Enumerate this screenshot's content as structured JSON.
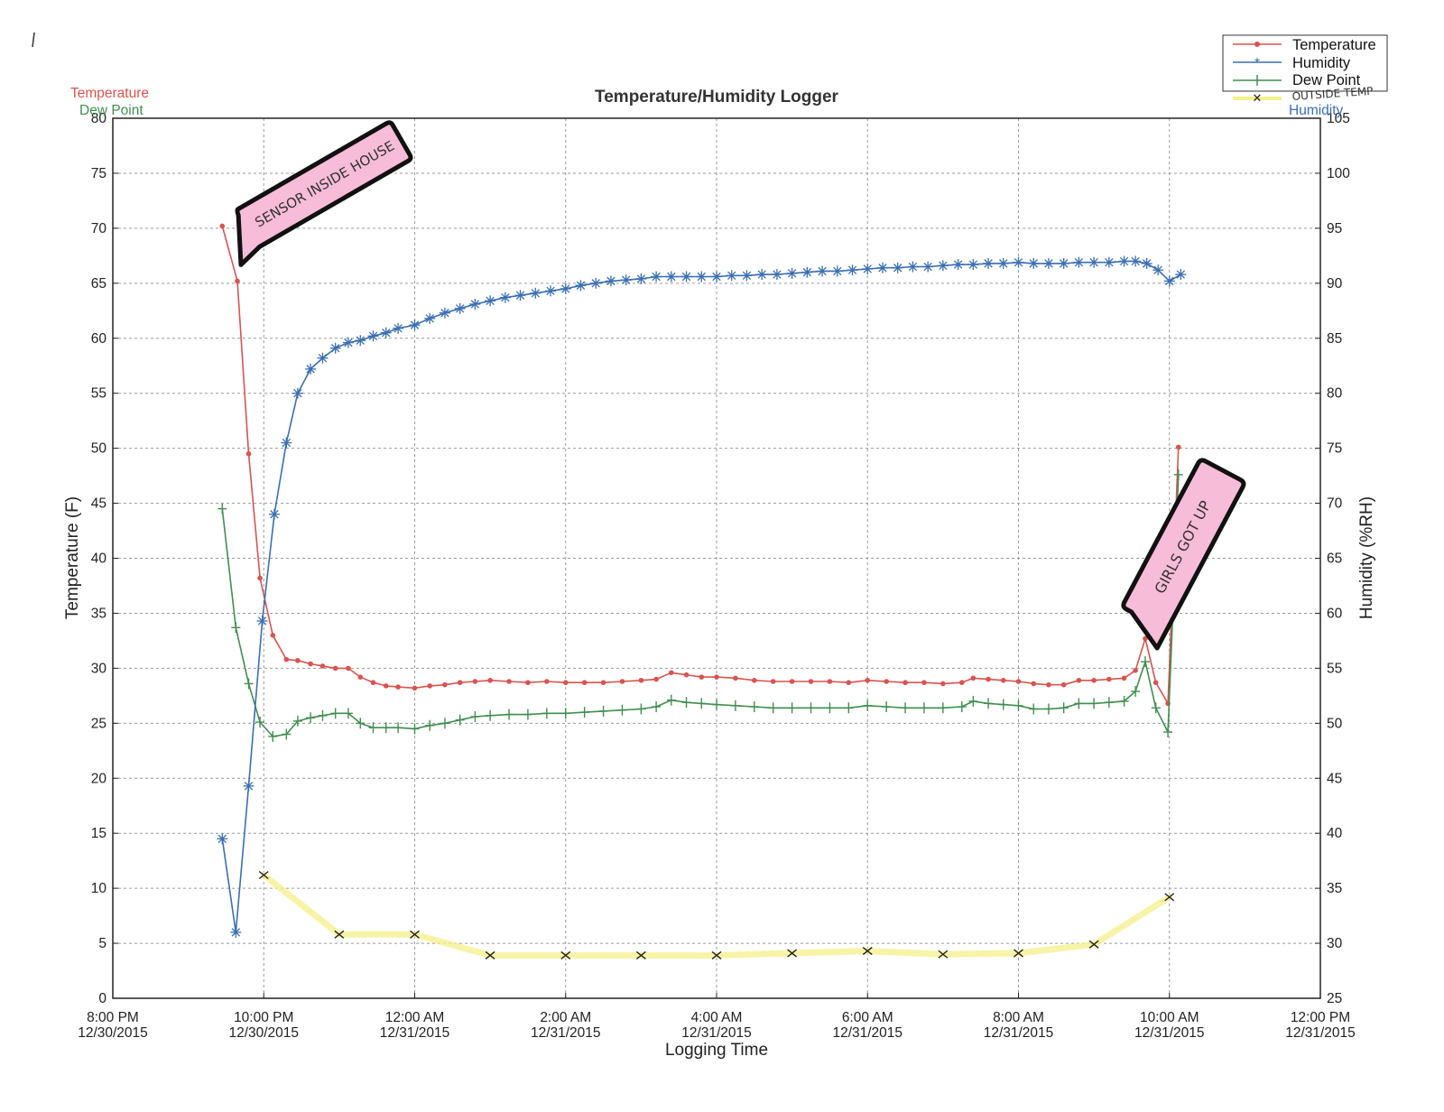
{
  "chart_data": {
    "type": "line",
    "title": "Temperature/Humidity Logger",
    "xlabel": "Logging Time",
    "ylabel": "Temperature (F)",
    "ylabel_right": "Humidity (%RH)",
    "left_legend": {
      "temperature": "Temperature",
      "dew_point": "Dew Point"
    },
    "right_legend": {
      "humidity": "Humidity"
    },
    "xlim": [
      -2,
      14
    ],
    "ylim": [
      0,
      80
    ],
    "ylim_right": [
      25,
      105
    ],
    "grid": true,
    "legend_placement": "top-right",
    "x_ticks": [
      {
        "x": -2,
        "line1": "8:00 PM",
        "line2": "12/30/2015"
      },
      {
        "x": 0,
        "line1": "10:00 PM",
        "line2": "12/30/2015"
      },
      {
        "x": 2,
        "line1": "12:00 AM",
        "line2": "12/31/2015"
      },
      {
        "x": 4,
        "line1": "2:00 AM",
        "line2": "12/31/2015"
      },
      {
        "x": 6,
        "line1": "4:00 AM",
        "line2": "12/31/2015"
      },
      {
        "x": 8,
        "line1": "6:00 AM",
        "line2": "12/31/2015"
      },
      {
        "x": 10,
        "line1": "8:00 AM",
        "line2": "12/31/2015"
      },
      {
        "x": 12,
        "line1": "10:00 AM",
        "line2": "12/31/2015"
      },
      {
        "x": 14,
        "line1": "12:00 PM",
        "line2": "12/31/2015"
      }
    ],
    "y_ticks": [
      "0",
      "5",
      "10",
      "15",
      "20",
      "25",
      "30",
      "35",
      "40",
      "45",
      "50",
      "55",
      "60",
      "65",
      "70",
      "75",
      "80"
    ],
    "y_ticks_right": [
      "25",
      "30",
      "35",
      "40",
      "45",
      "50",
      "55",
      "60",
      "65",
      "70",
      "75",
      "80",
      "85",
      "90",
      "95",
      "100",
      "105"
    ],
    "series": [
      {
        "name": "Temperature",
        "color": "#d9534f",
        "marker": "dot",
        "axis": "left",
        "points": [
          [
            -0.55,
            70.2
          ],
          [
            -0.35,
            65.2
          ],
          [
            -0.2,
            49.5
          ],
          [
            -0.05,
            38.2
          ],
          [
            0.12,
            33
          ],
          [
            0.3,
            30.8
          ],
          [
            0.45,
            30.7
          ],
          [
            0.62,
            30.4
          ],
          [
            0.78,
            30.2
          ],
          [
            0.95,
            30.0
          ],
          [
            1.12,
            30.0
          ],
          [
            1.28,
            29.2
          ],
          [
            1.45,
            28.7
          ],
          [
            1.62,
            28.4
          ],
          [
            1.78,
            28.3
          ],
          [
            2.0,
            28.2
          ],
          [
            2.2,
            28.4
          ],
          [
            2.4,
            28.5
          ],
          [
            2.6,
            28.7
          ],
          [
            2.8,
            28.8
          ],
          [
            3.0,
            28.9
          ],
          [
            3.25,
            28.8
          ],
          [
            3.5,
            28.7
          ],
          [
            3.75,
            28.8
          ],
          [
            4.0,
            28.7
          ],
          [
            4.25,
            28.7
          ],
          [
            4.5,
            28.7
          ],
          [
            4.75,
            28.8
          ],
          [
            5.0,
            28.9
          ],
          [
            5.2,
            29.0
          ],
          [
            5.4,
            29.6
          ],
          [
            5.6,
            29.4
          ],
          [
            5.8,
            29.2
          ],
          [
            6.0,
            29.2
          ],
          [
            6.25,
            29.1
          ],
          [
            6.5,
            28.9
          ],
          [
            6.75,
            28.8
          ],
          [
            7.0,
            28.8
          ],
          [
            7.25,
            28.8
          ],
          [
            7.5,
            28.8
          ],
          [
            7.75,
            28.7
          ],
          [
            8.0,
            28.9
          ],
          [
            8.25,
            28.8
          ],
          [
            8.5,
            28.7
          ],
          [
            8.75,
            28.7
          ],
          [
            9.0,
            28.6
          ],
          [
            9.25,
            28.7
          ],
          [
            9.4,
            29.1
          ],
          [
            9.6,
            29.0
          ],
          [
            9.8,
            28.9
          ],
          [
            10.0,
            28.8
          ],
          [
            10.2,
            28.6
          ],
          [
            10.4,
            28.5
          ],
          [
            10.6,
            28.5
          ],
          [
            10.8,
            28.9
          ],
          [
            11.0,
            28.9
          ],
          [
            11.2,
            29.0
          ],
          [
            11.4,
            29.1
          ],
          [
            11.55,
            29.8
          ],
          [
            11.68,
            32.7
          ],
          [
            11.82,
            28.7
          ],
          [
            11.98,
            26.8
          ],
          [
            12.12,
            50.1
          ]
        ]
      },
      {
        "name": "Humidity",
        "color": "#3a6fb3",
        "marker": "star",
        "axis": "right",
        "points": [
          [
            -0.55,
            39.5
          ],
          [
            -0.37,
            31
          ],
          [
            -0.2,
            44.3
          ],
          [
            -0.02,
            59.3
          ],
          [
            0.14,
            69
          ],
          [
            0.3,
            75.5
          ],
          [
            0.45,
            80
          ],
          [
            0.62,
            82.2
          ],
          [
            0.78,
            83.2
          ],
          [
            0.95,
            84.1
          ],
          [
            1.12,
            84.6
          ],
          [
            1.28,
            84.8
          ],
          [
            1.45,
            85.2
          ],
          [
            1.62,
            85.5
          ],
          [
            1.78,
            85.9
          ],
          [
            2.0,
            86.2
          ],
          [
            2.2,
            86.8
          ],
          [
            2.4,
            87.3
          ],
          [
            2.6,
            87.7
          ],
          [
            2.8,
            88.1
          ],
          [
            3.0,
            88.4
          ],
          [
            3.2,
            88.7
          ],
          [
            3.4,
            88.9
          ],
          [
            3.6,
            89.1
          ],
          [
            3.8,
            89.3
          ],
          [
            4.0,
            89.5
          ],
          [
            4.2,
            89.8
          ],
          [
            4.4,
            90.0
          ],
          [
            4.6,
            90.2
          ],
          [
            4.8,
            90.3
          ],
          [
            5.0,
            90.4
          ],
          [
            5.2,
            90.6
          ],
          [
            5.4,
            90.6
          ],
          [
            5.6,
            90.6
          ],
          [
            5.8,
            90.6
          ],
          [
            6.0,
            90.6
          ],
          [
            6.2,
            90.7
          ],
          [
            6.4,
            90.7
          ],
          [
            6.6,
            90.8
          ],
          [
            6.8,
            90.8
          ],
          [
            7.0,
            90.9
          ],
          [
            7.2,
            91.0
          ],
          [
            7.4,
            91.1
          ],
          [
            7.6,
            91.1
          ],
          [
            7.8,
            91.2
          ],
          [
            8.0,
            91.3
          ],
          [
            8.2,
            91.4
          ],
          [
            8.4,
            91.4
          ],
          [
            8.6,
            91.5
          ],
          [
            8.8,
            91.5
          ],
          [
            9.0,
            91.6
          ],
          [
            9.2,
            91.7
          ],
          [
            9.4,
            91.7
          ],
          [
            9.6,
            91.8
          ],
          [
            9.8,
            91.8
          ],
          [
            10.0,
            91.9
          ],
          [
            10.2,
            91.8
          ],
          [
            10.4,
            91.8
          ],
          [
            10.6,
            91.8
          ],
          [
            10.8,
            91.9
          ],
          [
            11.0,
            91.9
          ],
          [
            11.2,
            91.9
          ],
          [
            11.4,
            92.0
          ],
          [
            11.55,
            92.0
          ],
          [
            11.7,
            91.8
          ],
          [
            11.85,
            91.2
          ],
          [
            12.0,
            90.2
          ],
          [
            12.15,
            90.8
          ]
        ]
      },
      {
        "name": "Dew Point",
        "color": "#3f8f4f",
        "marker": "plus",
        "axis": "left",
        "points": [
          [
            -0.55,
            44.5
          ],
          [
            -0.37,
            33.7
          ],
          [
            -0.2,
            28.6
          ],
          [
            -0.05,
            25.1
          ],
          [
            0.12,
            23.8
          ],
          [
            0.3,
            24.0
          ],
          [
            0.45,
            25.2
          ],
          [
            0.62,
            25.5
          ],
          [
            0.78,
            25.7
          ],
          [
            0.95,
            25.9
          ],
          [
            1.12,
            25.9
          ],
          [
            1.28,
            25.0
          ],
          [
            1.45,
            24.6
          ],
          [
            1.62,
            24.6
          ],
          [
            1.78,
            24.6
          ],
          [
            2.0,
            24.5
          ],
          [
            2.2,
            24.8
          ],
          [
            2.4,
            25.0
          ],
          [
            2.6,
            25.3
          ],
          [
            2.8,
            25.6
          ],
          [
            3.0,
            25.7
          ],
          [
            3.25,
            25.8
          ],
          [
            3.5,
            25.8
          ],
          [
            3.75,
            25.9
          ],
          [
            4.0,
            25.9
          ],
          [
            4.25,
            26.0
          ],
          [
            4.5,
            26.1
          ],
          [
            4.75,
            26.2
          ],
          [
            5.0,
            26.3
          ],
          [
            5.2,
            26.5
          ],
          [
            5.4,
            27.1
          ],
          [
            5.6,
            26.9
          ],
          [
            5.8,
            26.8
          ],
          [
            6.0,
            26.7
          ],
          [
            6.25,
            26.6
          ],
          [
            6.5,
            26.5
          ],
          [
            6.75,
            26.4
          ],
          [
            7.0,
            26.4
          ],
          [
            7.25,
            26.4
          ],
          [
            7.5,
            26.4
          ],
          [
            7.75,
            26.4
          ],
          [
            8.0,
            26.6
          ],
          [
            8.25,
            26.5
          ],
          [
            8.5,
            26.4
          ],
          [
            8.75,
            26.4
          ],
          [
            9.0,
            26.4
          ],
          [
            9.25,
            26.5
          ],
          [
            9.4,
            27.0
          ],
          [
            9.6,
            26.8
          ],
          [
            9.8,
            26.7
          ],
          [
            10.0,
            26.6
          ],
          [
            10.2,
            26.3
          ],
          [
            10.4,
            26.3
          ],
          [
            10.6,
            26.4
          ],
          [
            10.8,
            26.8
          ],
          [
            11.0,
            26.8
          ],
          [
            11.2,
            26.9
          ],
          [
            11.4,
            27.0
          ],
          [
            11.55,
            27.9
          ],
          [
            11.68,
            30.6
          ],
          [
            11.82,
            26.4
          ],
          [
            11.98,
            24.2
          ],
          [
            12.12,
            47.6
          ]
        ]
      },
      {
        "name": "OUTSIDE TEMP",
        "color": "#f4f08a",
        "marker": "x",
        "axis": "left",
        "points": [
          [
            0,
            11.2
          ],
          [
            1,
            5.8
          ],
          [
            2,
            5.8
          ],
          [
            3,
            3.9
          ],
          [
            4,
            3.9
          ],
          [
            5,
            3.9
          ],
          [
            6,
            3.9
          ],
          [
            7,
            4.1
          ],
          [
            8,
            4.3
          ],
          [
            9,
            4.0
          ],
          [
            10,
            4.1
          ],
          [
            11,
            4.9
          ],
          [
            12,
            9.2
          ]
        ]
      }
    ]
  },
  "legend": {
    "items": [
      {
        "label": "Temperature",
        "color": "#d9534f"
      },
      {
        "label": "Humidity",
        "color": "#3a6fb3"
      },
      {
        "label": "Dew Point",
        "color": "#3f8f4f"
      },
      {
        "label": "OUTSIDE TEMP",
        "color": "#f4f08a"
      }
    ]
  },
  "annotations": {
    "sensor_note": "SENSOR INSIDE HOUSE",
    "girls_note": "GIRLS GOT UP"
  },
  "colors": {
    "temperature": "#d9534f",
    "humidity": "#3a6fb3",
    "dew_point": "#3f8f4f",
    "outside_line": "#f4f08a",
    "note_fill": "#f6bcd8"
  }
}
